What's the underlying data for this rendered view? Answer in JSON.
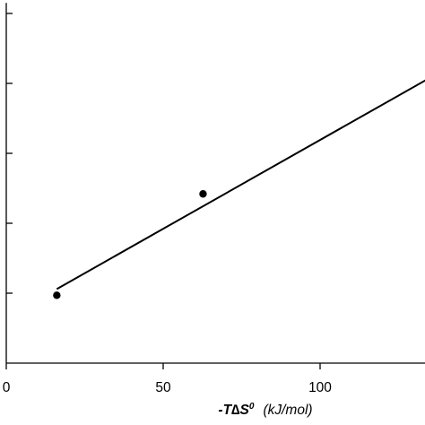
{
  "chart_data": {
    "type": "scatter",
    "xlabel": {
      "prefix": "-",
      "T": "T",
      "delta": "∆",
      "S": "S",
      "superscript": "0",
      "units": "(kJ/mol)"
    },
    "ylabel": "",
    "xlim": [
      0,
      135
    ],
    "x_ticks": [
      0,
      50,
      100
    ],
    "x_tick_labels": [
      "0",
      "50",
      "100"
    ],
    "ylim": [
      0,
      5.15
    ],
    "y_ticks": [
      1,
      2,
      3,
      4,
      5
    ],
    "grid": false,
    "legend": "none",
    "series": [
      {
        "kind": "points",
        "x": [
          16.1,
          62.7
        ],
        "y": [
          0.97,
          2.42
        ]
      },
      {
        "kind": "fit-line",
        "x": [
          16.1,
          135
        ],
        "y": [
          1.06,
          4.08
        ]
      }
    ],
    "colors": {
      "axis": "#000000",
      "marker": "#000000",
      "line": "#000000"
    }
  }
}
